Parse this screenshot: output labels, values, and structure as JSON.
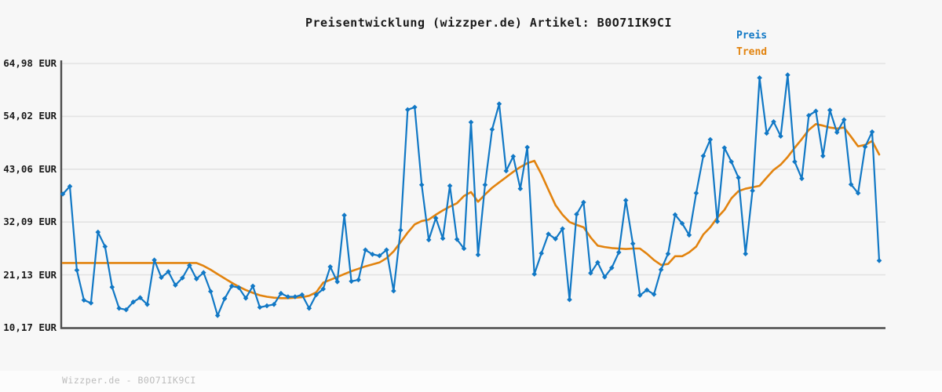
{
  "page": {
    "title": "Preisentwicklung (wizzper.de) Artikel: B0O71IK9CI",
    "watermark": "Wizzper.de - B0O71IK9CI",
    "background": "#f7f7f7"
  },
  "legend": {
    "position": "top-right",
    "items": [
      {
        "label": "Preis",
        "color": "#1178c5"
      },
      {
        "label": "Trend",
        "color": "#e2830e"
      }
    ]
  },
  "colors": {
    "price_line": "#1178c5",
    "trend_line": "#e2830e",
    "axis": "#4d4d4d",
    "gridline": "#e3e3e3",
    "title_text": "#1a1a1a",
    "watermark_text": "#bcbcbc"
  },
  "chart_data": {
    "type": "line",
    "title": "Preisentwicklung (wizzper.de) Artikel: B0O71IK9CI",
    "currency": "EUR",
    "grid": true,
    "x_axis": {
      "tick_labels_visible": false
    },
    "ylim": [
      10.17,
      64.98
    ],
    "y_ticks": [
      {
        "label": "64,98 EUR",
        "value": 64.98
      },
      {
        "label": "54,02 EUR",
        "value": 54.02
      },
      {
        "label": "43,06 EUR",
        "value": 43.06
      },
      {
        "label": "32,09 EUR",
        "value": 32.09
      },
      {
        "label": "21,13 EUR",
        "value": 21.13
      },
      {
        "label": "10,17 EUR",
        "value": 10.17
      }
    ],
    "series": [
      {
        "name": "Preis",
        "color": "#1178c5",
        "marker": "diamond",
        "values": [
          37.9,
          39.5,
          22.1,
          15.9,
          15.3,
          30.0,
          27.0,
          18.6,
          14.2,
          13.9,
          15.5,
          16.4,
          15.0,
          24.2,
          20.6,
          21.8,
          19.0,
          20.5,
          23.1,
          20.3,
          21.6,
          17.7,
          12.7,
          16.2,
          18.8,
          18.5,
          16.3,
          18.8,
          14.4,
          14.7,
          15.0,
          17.3,
          16.6,
          16.6,
          17.0,
          14.2,
          17.0,
          18.2,
          22.8,
          19.7,
          33.5,
          19.8,
          20.1,
          26.3,
          25.4,
          25.1,
          26.3,
          17.8,
          30.4,
          55.4,
          55.9,
          39.8,
          28.4,
          32.9,
          28.7,
          39.6,
          28.5,
          26.6,
          52.8,
          25.3,
          39.8,
          51.3,
          56.6,
          42.7,
          45.7,
          39.0,
          47.6,
          21.3,
          25.6,
          29.6,
          28.6,
          30.7,
          16.0,
          33.7,
          36.2,
          21.5,
          23.7,
          20.7,
          22.6,
          25.8,
          36.6,
          27.6,
          16.9,
          18.0,
          17.1,
          22.2,
          25.5,
          33.6,
          31.8,
          29.4,
          38.1,
          45.8,
          49.2,
          32.2,
          47.5,
          44.6,
          41.3,
          25.5,
          38.6,
          62.0,
          50.5,
          52.9,
          49.9,
          62.6,
          44.6,
          41.1,
          54.2,
          55.1,
          45.8,
          55.3,
          50.7,
          53.3,
          39.9,
          38.1,
          47.7,
          50.8,
          24.1
        ]
      },
      {
        "name": "Trend",
        "color": "#e2830e",
        "marker": "none",
        "values": [
          23.6,
          23.6,
          23.6,
          23.6,
          23.6,
          23.6,
          23.6,
          23.6,
          23.6,
          23.6,
          23.6,
          23.6,
          23.6,
          23.6,
          23.6,
          23.6,
          23.6,
          23.6,
          23.6,
          23.6,
          23.0,
          22.2,
          21.3,
          20.4,
          19.5,
          18.7,
          18.0,
          17.4,
          16.9,
          16.6,
          16.4,
          16.3,
          16.3,
          16.4,
          16.5,
          16.8,
          17.5,
          19.5,
          20.1,
          20.7,
          21.3,
          21.9,
          22.4,
          22.9,
          23.3,
          23.7,
          24.6,
          26.0,
          27.9,
          29.9,
          31.6,
          32.3,
          32.6,
          33.6,
          34.5,
          35.3,
          36.0,
          37.5,
          38.3,
          36.3,
          37.8,
          39.2,
          40.3,
          41.4,
          42.5,
          43.5,
          44.3,
          44.8,
          42.0,
          38.8,
          35.6,
          33.6,
          32.1,
          31.5,
          31.0,
          28.9,
          27.2,
          26.9,
          26.7,
          26.6,
          26.5,
          26.6,
          26.6,
          25.5,
          24.2,
          23.2,
          23.4,
          25.0,
          25.0,
          25.8,
          27.0,
          29.5,
          31.0,
          33.0,
          34.6,
          37.0,
          38.5,
          39.0,
          39.3,
          39.6,
          41.3,
          42.9,
          44.0,
          45.6,
          47.5,
          49.3,
          51.2,
          52.4,
          52.1,
          51.7,
          51.5,
          51.7,
          49.8,
          47.8,
          48.1,
          48.9,
          46.1
        ]
      }
    ]
  }
}
